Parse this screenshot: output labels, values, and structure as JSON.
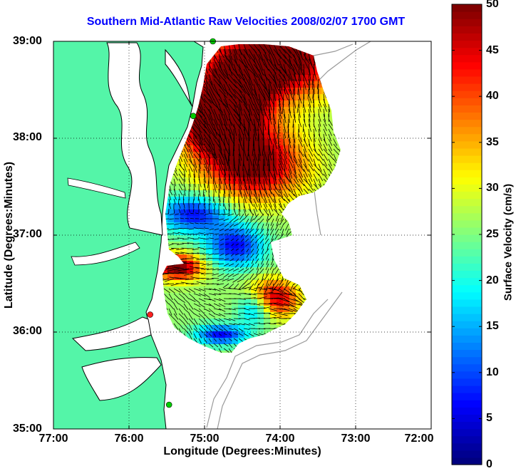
{
  "map": {
    "title": "Southern Mid-Atlantic Raw Velocities 2008/02/07 1700 GMT",
    "xlabel": "Longitude (Degrees:Minutes)",
    "ylabel": "Latitude (Degrees:Minutes)",
    "x_ticks": [
      "77:00",
      "76:00",
      "75:00",
      "74:00",
      "73:00",
      "72:00"
    ],
    "y_ticks": [
      "39:00",
      "38:00",
      "37:00",
      "36:00",
      "35:00"
    ],
    "lon_range": [
      -77,
      -72
    ],
    "lat_range": [
      35,
      39
    ],
    "grid": "dotted",
    "colors": {
      "land": "#54f5a8",
      "sea": "#ffffff",
      "title": "#0000ff",
      "vectors": "#000000",
      "coastline": "#000000"
    }
  },
  "colorbar": {
    "label": "Surface Velocity (cm/s)",
    "ticks": [
      "50",
      "45",
      "40",
      "35",
      "30",
      "25",
      "20",
      "15",
      "10",
      "5",
      "0"
    ],
    "range": [
      0,
      50
    ],
    "colormap": "jet"
  },
  "chart_data": {
    "type": "heatmap",
    "title": "Southern Mid-Atlantic Raw Velocities 2008/02/07 1700 GMT",
    "xlabel": "Longitude (Degrees:Minutes)",
    "ylabel": "Latitude (Degrees:Minutes)",
    "zlabel": "Surface Velocity (cm/s)",
    "xlim": [
      -77,
      -72
    ],
    "ylim": [
      35,
      39
    ],
    "zlim": [
      0,
      50
    ],
    "stations": [
      {
        "lon": -74.89,
        "lat": 39.0,
        "color": "#00cc00"
      },
      {
        "lon": -75.15,
        "lat": 38.23,
        "color": "#00cc00"
      },
      {
        "lon": -75.72,
        "lat": 36.18,
        "color": "#ff2020"
      },
      {
        "lon": -75.47,
        "lat": 35.25,
        "color": "#00cc00"
      }
    ]
  }
}
